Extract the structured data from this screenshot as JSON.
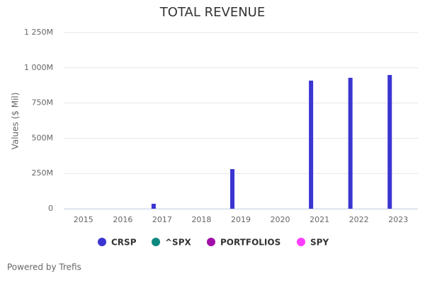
{
  "chart_data": {
    "type": "bar",
    "title": "TOTAL REVENUE",
    "y_label": "Values ($ Mil)",
    "categories": [
      "2015",
      "2016",
      "2017",
      "2018",
      "2019",
      "2020",
      "2021",
      "2022",
      "2023"
    ],
    "series": [
      {
        "name": "CRSP",
        "color": "#3b35d1",
        "values": [
          null,
          null,
          35,
          null,
          281,
          null,
          909,
          929,
          949
        ]
      },
      {
        "name": "^SPX",
        "color": "#0d8a80",
        "values": [
          null,
          null,
          null,
          null,
          null,
          null,
          null,
          null,
          null
        ]
      },
      {
        "name": "PORTFOLIOS",
        "color": "#a00fa8",
        "values": [
          null,
          null,
          null,
          null,
          null,
          null,
          null,
          null,
          null
        ]
      },
      {
        "name": "SPY",
        "color": "#ff3dff",
        "values": [
          null,
          null,
          null,
          null,
          null,
          null,
          null,
          null,
          null
        ]
      }
    ],
    "ylim": [
      0,
      1250
    ],
    "yticks": [
      0,
      {
        "value": 250,
        "label": "250M"
      },
      {
        "value": 500,
        "label": "500M"
      },
      {
        "value": 750,
        "label": "750M"
      },
      {
        "value": 1000,
        "label": "1 000M"
      },
      {
        "value": 1250,
        "label": "1 250M"
      }
    ],
    "grid": true,
    "credit": "Powered by Trefis"
  }
}
